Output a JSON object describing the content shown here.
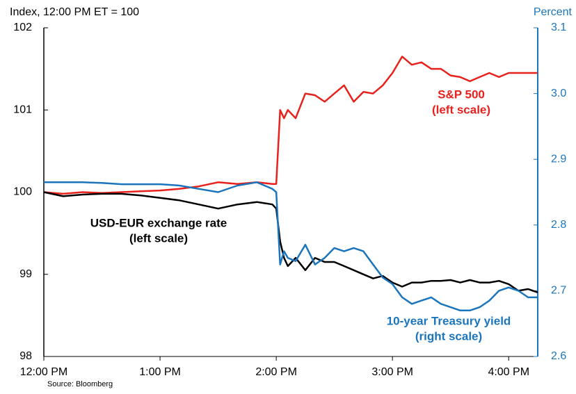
{
  "chart_data": {
    "type": "line",
    "y_label": "Index, 12:00 PM ET = 100",
    "y2_label": "Percent",
    "source": "Source: Bloomberg",
    "x": [
      0,
      10,
      20,
      30,
      40,
      50,
      60,
      70,
      80,
      90,
      100,
      110,
      118,
      120,
      122,
      124,
      126,
      130,
      135,
      140,
      145,
      150,
      155,
      160,
      165,
      170,
      175,
      180,
      185,
      190,
      195,
      200,
      205,
      210,
      215,
      220,
      225,
      230,
      235,
      240,
      245,
      250,
      255
    ],
    "xlim": [
      0,
      255
    ],
    "xticks": [
      {
        "value": 0,
        "label": "12:00 PM"
      },
      {
        "value": 60,
        "label": "1:00 PM"
      },
      {
        "value": 120,
        "label": "2:00 PM"
      },
      {
        "value": 180,
        "label": "3:00 PM"
      },
      {
        "value": 240,
        "label": "4:00 PM"
      }
    ],
    "ylim": [
      98,
      102
    ],
    "yticks": [
      98,
      99,
      100,
      101,
      102
    ],
    "y2lim": [
      2.6,
      3.1
    ],
    "y2ticks": [
      2.6,
      2.7,
      2.8,
      2.9,
      {
        "value": 3,
        "label": "3.0"
      },
      3.1
    ],
    "y2_color": "#1a75bc",
    "series": [
      {
        "name": "S&P 500",
        "note": "(left scale)",
        "color": "#e8211d",
        "values": [
          100.0,
          99.98,
          100.0,
          99.99,
          100.0,
          100.01,
          100.02,
          100.04,
          100.07,
          100.12,
          100.1,
          100.12,
          100.1,
          100.1,
          101.0,
          100.9,
          101.0,
          100.9,
          101.2,
          101.18,
          101.1,
          101.2,
          101.3,
          101.1,
          101.22,
          101.2,
          101.3,
          101.45,
          101.65,
          101.55,
          101.58,
          101.5,
          101.5,
          101.42,
          101.4,
          101.35,
          101.4,
          101.45,
          101.4,
          101.45,
          101.45,
          101.45,
          101.45
        ]
      },
      {
        "name": "USD-EUR exchange rate",
        "note": "(left scale)",
        "color": "#000000",
        "values": [
          100.0,
          99.95,
          99.97,
          99.98,
          99.98,
          99.96,
          99.93,
          99.9,
          99.85,
          99.8,
          99.85,
          99.88,
          99.85,
          99.8,
          99.4,
          99.2,
          99.1,
          99.2,
          99.05,
          99.2,
          99.15,
          99.15,
          99.1,
          99.05,
          99.0,
          98.95,
          98.98,
          98.9,
          98.85,
          98.9,
          98.9,
          98.92,
          98.92,
          98.93,
          98.9,
          98.93,
          98.9,
          98.9,
          98.92,
          98.88,
          98.8,
          98.82,
          98.78
        ]
      },
      {
        "name": "10-year Treasury yield",
        "note": "(right scale)",
        "color": "#1a75bc",
        "axis": "y2",
        "values": [
          2.865,
          2.865,
          2.865,
          2.864,
          2.862,
          2.862,
          2.862,
          2.86,
          2.855,
          2.85,
          2.86,
          2.865,
          2.855,
          2.85,
          2.74,
          2.76,
          2.75,
          2.745,
          2.77,
          2.74,
          2.75,
          2.765,
          2.76,
          2.765,
          2.76,
          2.74,
          2.72,
          2.71,
          2.69,
          2.68,
          2.685,
          2.69,
          2.68,
          2.675,
          2.67,
          2.67,
          2.675,
          2.685,
          2.7,
          2.705,
          2.7,
          2.69,
          2.69
        ]
      }
    ]
  }
}
